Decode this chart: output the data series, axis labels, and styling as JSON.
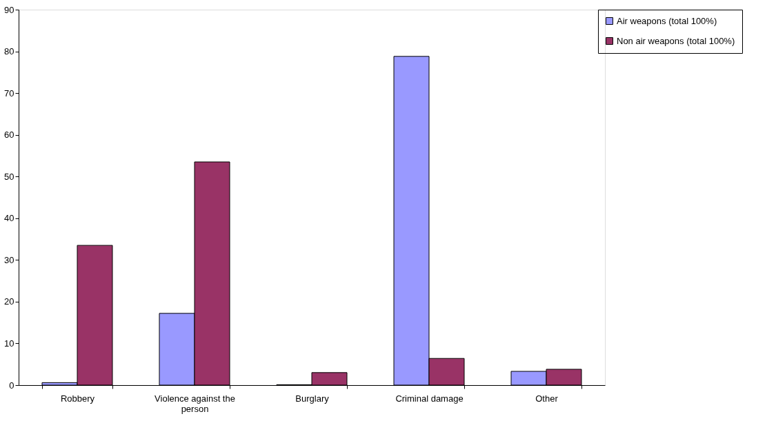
{
  "chart_data": {
    "type": "bar",
    "categories": [
      "Robbery",
      "Violence against the person",
      "Burglary",
      "Criminal damage",
      "Other"
    ],
    "series": [
      {
        "name": "Air weapons (total 100%)",
        "color": "#9999ff",
        "values": [
          0.6,
          17.2,
          0.1,
          78.8,
          3.3
        ]
      },
      {
        "name": "Non air weapons (total 100%)",
        "color": "#993366",
        "values": [
          33.5,
          53.5,
          3.0,
          6.4,
          3.8
        ]
      }
    ],
    "ylim": [
      0,
      90
    ],
    "yticks": [
      0,
      10,
      20,
      30,
      40,
      50,
      60,
      70,
      80,
      90
    ],
    "grid": false,
    "legend": "right"
  }
}
